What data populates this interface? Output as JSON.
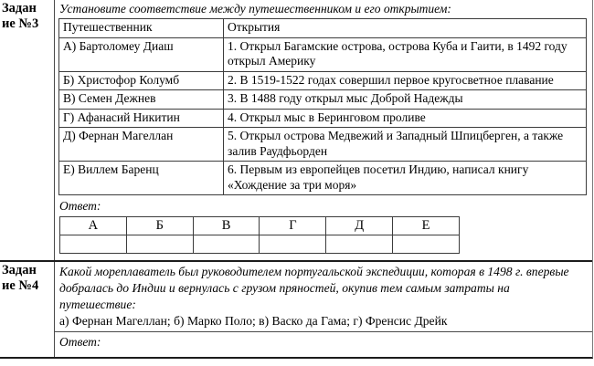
{
  "colors": {
    "text": "#000000",
    "border": "#3c3c3c",
    "background": "#ffffff"
  },
  "task3": {
    "label_line1": "Задан",
    "label_line2": "ие №3",
    "instruction": "Установите соответствие между путешественником и его открытием:",
    "match_table": {
      "col1_header": "Путешественник",
      "col2_header": "Открытия",
      "rows": [
        {
          "traveler": "А) Бартоломеу Диаш",
          "discovery": "1. Открыл Багамские острова, острова Куба и Гаити, в 1492 году открыл Америку"
        },
        {
          "traveler": "Б) Христофор Колумб",
          "discovery": "2. В 1519-1522 годах совершил первое кругосветное плавание"
        },
        {
          "traveler": "В) Семен Дежнев",
          "discovery": "3. В 1488 году открыл мыс Доброй Надежды"
        },
        {
          "traveler": "Г) Афанасий Никитин",
          "discovery": "4. Открыл мыс в Беринговом проливе"
        },
        {
          "traveler": "Д) Фернан Магеллан",
          "discovery": "5. Открыл острова Медвежий и Западный Шпицберген, а также залив Раудфьорден"
        },
        {
          "traveler": "Е) Виллем Баренц",
          "discovery": "6. Первым из европейцев посетил Индию, написал книгу «Хождение за три моря»"
        }
      ]
    },
    "answer_label": "Ответ:",
    "answer_table": {
      "headers": [
        "А",
        "Б",
        "В",
        "Г",
        "Д",
        "Е"
      ],
      "values": [
        "",
        "",
        "",
        "",
        "",
        ""
      ]
    }
  },
  "task4": {
    "label_line1": "Задан",
    "label_line2": "ие №4",
    "question": "Какой мореплаватель был руководителем португальской экспедиции, которая в 1498 г. впервые добралась до Индии и вернулась с грузом пряностей, окупив тем самым затраты на путешествие:",
    "options": "а) Фернан Магеллан; б) Марко Поло; в) Васко да Гама; г) Френсис Дрейк",
    "answer_label": "Ответ:"
  }
}
